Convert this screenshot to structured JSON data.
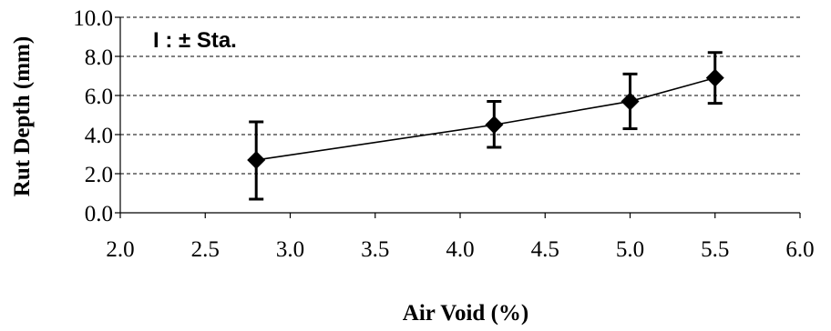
{
  "chart_data": {
    "type": "line",
    "title": "",
    "xlabel": "Air Void (%)",
    "ylabel": "Rut Depth (mm)",
    "xlim": [
      2.0,
      6.0
    ],
    "ylim": [
      0.0,
      10.0
    ],
    "x_ticks": [
      "2.0",
      "2.5",
      "3.0",
      "3.5",
      "4.0",
      "4.5",
      "5.0",
      "5.5",
      "6.0"
    ],
    "y_ticks": [
      "0.0",
      "2.0",
      "4.0",
      "6.0",
      "8.0",
      "10.0"
    ],
    "grid": "horizontal dashed",
    "annotation": "I : ± Sta.",
    "marker": "diamond",
    "series": [
      {
        "x": [
          2.8,
          4.2,
          5.0,
          5.5
        ],
        "y": [
          2.7,
          4.5,
          5.7,
          6.9
        ],
        "error_low": [
          0.7,
          3.35,
          4.3,
          5.6
        ],
        "error_high": [
          4.65,
          5.7,
          7.1,
          8.2
        ]
      }
    ],
    "colors": {
      "line": "#000000",
      "grid": "#000000"
    }
  }
}
